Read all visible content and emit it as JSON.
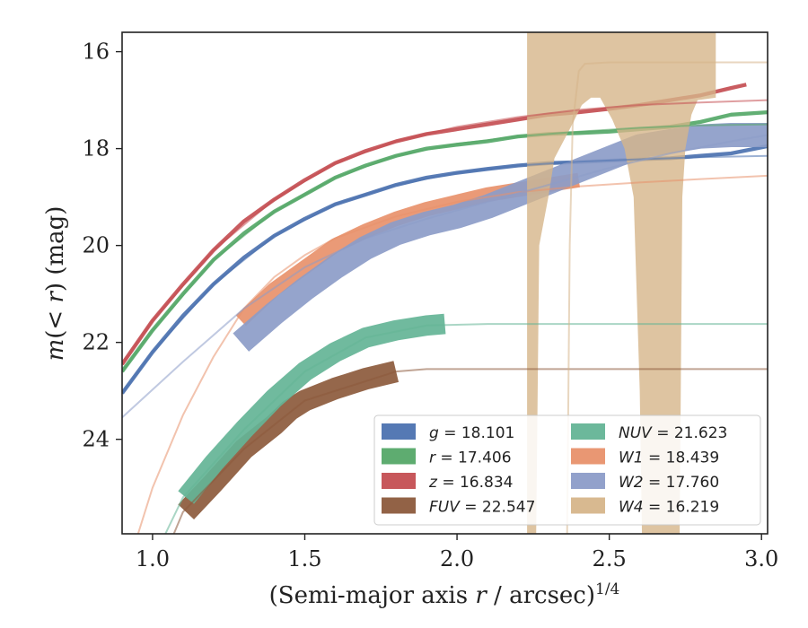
{
  "chart_data": {
    "type": "line",
    "xlabel": "(Semi-major axis r / arcsec)^1/4",
    "ylabel": "m(< r) (mag)",
    "xlim": [
      0.9,
      3.02
    ],
    "ylim": [
      25.95,
      15.6
    ],
    "y_inverted": true,
    "grid": false,
    "legend_position": "lower-right",
    "legend_columns": 2,
    "x_ticks": [
      1.0,
      1.5,
      2.0,
      2.5,
      3.0
    ],
    "x_tick_labels": [
      "1.0",
      "1.5",
      "2.0",
      "2.5",
      "3.0"
    ],
    "y_ticks": [
      16,
      18,
      20,
      22,
      24
    ],
    "y_tick_labels": [
      "16",
      "18",
      "20",
      "22",
      "24"
    ],
    "series": [
      {
        "name": "g = 18.101",
        "label_var": "g",
        "label_value": "18.101",
        "color": "#4c72b0",
        "band_width": 0.08,
        "data": [
          [
            0.9,
            23.05
          ],
          [
            1.0,
            22.2
          ],
          [
            1.1,
            21.45
          ],
          [
            1.2,
            20.8
          ],
          [
            1.3,
            20.25
          ],
          [
            1.4,
            19.8
          ],
          [
            1.5,
            19.45
          ],
          [
            1.6,
            19.15
          ],
          [
            1.7,
            18.95
          ],
          [
            1.8,
            18.75
          ],
          [
            1.9,
            18.6
          ],
          [
            2.0,
            18.5
          ],
          [
            2.1,
            18.42
          ],
          [
            2.2,
            18.35
          ],
          [
            2.3,
            18.3
          ],
          [
            2.4,
            18.28
          ],
          [
            2.5,
            18.25
          ],
          [
            2.6,
            18.22
          ],
          [
            2.7,
            18.2
          ],
          [
            2.8,
            18.15
          ],
          [
            2.9,
            18.1
          ],
          [
            3.02,
            17.95
          ]
        ],
        "model": [
          [
            0.9,
            23.05
          ],
          [
            1.0,
            22.2
          ],
          [
            1.2,
            20.8
          ],
          [
            1.4,
            19.8
          ],
          [
            1.6,
            19.15
          ],
          [
            1.8,
            18.75
          ],
          [
            2.0,
            18.5
          ],
          [
            2.2,
            18.35
          ],
          [
            2.4,
            18.27
          ],
          [
            2.6,
            18.22
          ],
          [
            2.8,
            18.18
          ],
          [
            3.02,
            18.15
          ]
        ]
      },
      {
        "name": "r = 17.406",
        "label_var": "r",
        "label_value": "17.406",
        "color": "#55a868",
        "band_width": 0.08,
        "data": [
          [
            0.9,
            22.6
          ],
          [
            1.0,
            21.75
          ],
          [
            1.1,
            21.0
          ],
          [
            1.2,
            20.3
          ],
          [
            1.3,
            19.75
          ],
          [
            1.4,
            19.3
          ],
          [
            1.5,
            18.95
          ],
          [
            1.6,
            18.6
          ],
          [
            1.7,
            18.35
          ],
          [
            1.8,
            18.15
          ],
          [
            1.9,
            18.0
          ],
          [
            2.0,
            17.92
          ],
          [
            2.1,
            17.85
          ],
          [
            2.2,
            17.75
          ],
          [
            2.3,
            17.7
          ],
          [
            2.4,
            17.68
          ],
          [
            2.5,
            17.65
          ],
          [
            2.6,
            17.6
          ],
          [
            2.7,
            17.55
          ],
          [
            2.8,
            17.45
          ],
          [
            2.9,
            17.3
          ],
          [
            3.02,
            17.25
          ]
        ],
        "model": [
          [
            0.9,
            22.6
          ],
          [
            1.0,
            21.75
          ],
          [
            1.2,
            20.3
          ],
          [
            1.4,
            19.3
          ],
          [
            1.6,
            18.6
          ],
          [
            1.8,
            18.15
          ],
          [
            2.0,
            17.9
          ],
          [
            2.2,
            17.75
          ],
          [
            2.4,
            17.65
          ],
          [
            2.6,
            17.57
          ],
          [
            2.8,
            17.52
          ],
          [
            3.02,
            17.5
          ]
        ]
      },
      {
        "name": "z = 16.834",
        "label_var": "z",
        "label_value": "16.834",
        "color": "#c44e52",
        "band_width": 0.08,
        "data": [
          [
            0.9,
            22.45
          ],
          [
            1.0,
            21.55
          ],
          [
            1.1,
            20.8
          ],
          [
            1.2,
            20.1
          ],
          [
            1.3,
            19.5
          ],
          [
            1.4,
            19.05
          ],
          [
            1.5,
            18.65
          ],
          [
            1.6,
            18.3
          ],
          [
            1.7,
            18.05
          ],
          [
            1.8,
            17.85
          ],
          [
            1.9,
            17.7
          ],
          [
            2.0,
            17.6
          ],
          [
            2.1,
            17.5
          ],
          [
            2.2,
            17.4
          ],
          [
            2.3,
            17.3
          ],
          [
            2.4,
            17.25
          ],
          [
            2.5,
            17.18
          ],
          [
            2.6,
            17.1
          ],
          [
            2.7,
            17.0
          ],
          [
            2.8,
            16.9
          ],
          [
            2.9,
            16.75
          ],
          [
            2.95,
            16.68
          ]
        ],
        "model": [
          [
            0.9,
            22.45
          ],
          [
            1.0,
            21.55
          ],
          [
            1.2,
            20.1
          ],
          [
            1.4,
            19.05
          ],
          [
            1.6,
            18.3
          ],
          [
            1.8,
            17.85
          ],
          [
            2.0,
            17.55
          ],
          [
            2.2,
            17.35
          ],
          [
            2.4,
            17.2
          ],
          [
            2.6,
            17.1
          ],
          [
            2.8,
            17.05
          ],
          [
            3.02,
            17.0
          ]
        ]
      },
      {
        "name": "FUV = 22.547",
        "label_var": "FUV",
        "label_value": "22.547",
        "color": "#8c5a3c",
        "band_width": 0.45,
        "data": [
          [
            1.11,
            25.5
          ],
          [
            1.2,
            24.9
          ],
          [
            1.3,
            24.2
          ],
          [
            1.4,
            23.7
          ],
          [
            1.45,
            23.4
          ],
          [
            1.5,
            23.2
          ],
          [
            1.6,
            22.95
          ],
          [
            1.7,
            22.75
          ],
          [
            1.8,
            22.6
          ]
        ],
        "model": [
          [
            0.9,
            28
          ],
          [
            1.0,
            27
          ],
          [
            1.1,
            25.5
          ],
          [
            1.3,
            24.2
          ],
          [
            1.5,
            23.2
          ],
          [
            1.7,
            22.8
          ],
          [
            1.8,
            22.6
          ],
          [
            1.9,
            22.55
          ],
          [
            2.2,
            22.55
          ],
          [
            3.02,
            22.55
          ]
        ]
      },
      {
        "name": "NUV = 21.623",
        "label_var": "NUV",
        "label_value": "21.623",
        "color": "#64b496",
        "band_width": 0.42,
        "data": [
          [
            1.11,
            25.2
          ],
          [
            1.2,
            24.5
          ],
          [
            1.3,
            23.8
          ],
          [
            1.4,
            23.15
          ],
          [
            1.5,
            22.6
          ],
          [
            1.6,
            22.2
          ],
          [
            1.7,
            21.9
          ],
          [
            1.8,
            21.75
          ],
          [
            1.9,
            21.65
          ],
          [
            1.96,
            21.62
          ]
        ],
        "model": [
          [
            0.9,
            28
          ],
          [
            1.0,
            26.5
          ],
          [
            1.1,
            25.2
          ],
          [
            1.3,
            23.8
          ],
          [
            1.5,
            22.6
          ],
          [
            1.7,
            21.9
          ],
          [
            1.9,
            21.65
          ],
          [
            2.1,
            21.62
          ],
          [
            3.02,
            21.62
          ]
        ]
      },
      {
        "name": "W1 = 18.439",
        "label_var": "W1",
        "label_value": "18.439",
        "color": "#e8916b",
        "band_width": 0.3,
        "data": [
          [
            1.29,
            21.55
          ],
          [
            1.4,
            20.9
          ],
          [
            1.5,
            20.45
          ],
          [
            1.6,
            20.0
          ],
          [
            1.7,
            19.7
          ],
          [
            1.8,
            19.45
          ],
          [
            1.9,
            19.25
          ],
          [
            2.0,
            19.1
          ],
          [
            2.1,
            18.95
          ],
          [
            2.2,
            18.85
          ],
          [
            2.3,
            18.75
          ],
          [
            2.4,
            18.65
          ]
        ],
        "model": [
          [
            0.9,
            27
          ],
          [
            1.0,
            25.0
          ],
          [
            1.1,
            23.5
          ],
          [
            1.2,
            22.3
          ],
          [
            1.3,
            21.3
          ],
          [
            1.4,
            20.65
          ],
          [
            1.5,
            20.2
          ],
          [
            1.6,
            19.85
          ],
          [
            1.8,
            19.4
          ],
          [
            2.0,
            19.1
          ],
          [
            2.2,
            18.9
          ],
          [
            2.4,
            18.78
          ],
          [
            2.6,
            18.7
          ],
          [
            2.8,
            18.63
          ],
          [
            3.02,
            18.56
          ]
        ]
      },
      {
        "name": "W2 = 17.760",
        "label_var": "W2",
        "label_value": "17.760",
        "color": "#8c9cc8",
        "band_width": 0.5,
        "data": [
          [
            1.29,
            22.0
          ],
          [
            1.4,
            21.4
          ],
          [
            1.5,
            20.9
          ],
          [
            1.6,
            20.45
          ],
          [
            1.7,
            20.05
          ],
          [
            1.8,
            19.75
          ],
          [
            1.9,
            19.55
          ],
          [
            2.0,
            19.4
          ],
          [
            2.1,
            19.2
          ],
          [
            2.2,
            18.95
          ],
          [
            2.3,
            18.7
          ],
          [
            2.4,
            18.45
          ],
          [
            2.5,
            18.2
          ],
          [
            2.6,
            17.95
          ],
          [
            2.7,
            17.85
          ],
          [
            2.8,
            17.75
          ],
          [
            2.9,
            17.72
          ],
          [
            3.02,
            17.72
          ]
        ],
        "model": [
          [
            0.9,
            23.55
          ],
          [
            1.1,
            22.4
          ],
          [
            1.3,
            21.3
          ],
          [
            1.5,
            20.45
          ],
          [
            1.7,
            19.85
          ],
          [
            1.9,
            19.45
          ],
          [
            2.1,
            19.1
          ],
          [
            2.3,
            18.75
          ],
          [
            2.5,
            18.4
          ],
          [
            2.7,
            18.1
          ],
          [
            2.9,
            17.85
          ],
          [
            3.02,
            17.72
          ]
        ]
      },
      {
        "name": "W4 = 16.219",
        "label_var": "W4",
        "label_value": "16.219",
        "color": "#d6b58a",
        "band_upper": [
          [
            2.23,
            14.0
          ],
          [
            2.85,
            14.0
          ]
        ],
        "band_lower": [
          [
            2.23,
            27.0
          ],
          [
            2.26,
            26.0
          ],
          [
            2.27,
            20.0
          ],
          [
            2.3,
            19.0
          ],
          [
            2.32,
            18.2
          ],
          [
            2.37,
            17.6
          ],
          [
            2.41,
            17.1
          ],
          [
            2.44,
            16.95
          ],
          [
            2.47,
            16.95
          ],
          [
            2.51,
            17.4
          ],
          [
            2.55,
            18.0
          ],
          [
            2.58,
            19.0
          ],
          [
            2.6,
            23.0
          ],
          [
            2.61,
            27.0
          ],
          [
            2.73,
            27.0
          ],
          [
            2.74,
            19.0
          ],
          [
            2.75,
            18.0
          ],
          [
            2.77,
            17.3
          ],
          [
            2.79,
            17.0
          ],
          [
            2.85,
            16.95
          ]
        ],
        "model": [
          [
            2.36,
            27.0
          ],
          [
            2.37,
            20.0
          ],
          [
            2.38,
            17.5
          ],
          [
            2.4,
            16.4
          ],
          [
            2.42,
            16.25
          ],
          [
            2.5,
            16.22
          ],
          [
            3.02,
            16.22
          ]
        ]
      }
    ]
  }
}
